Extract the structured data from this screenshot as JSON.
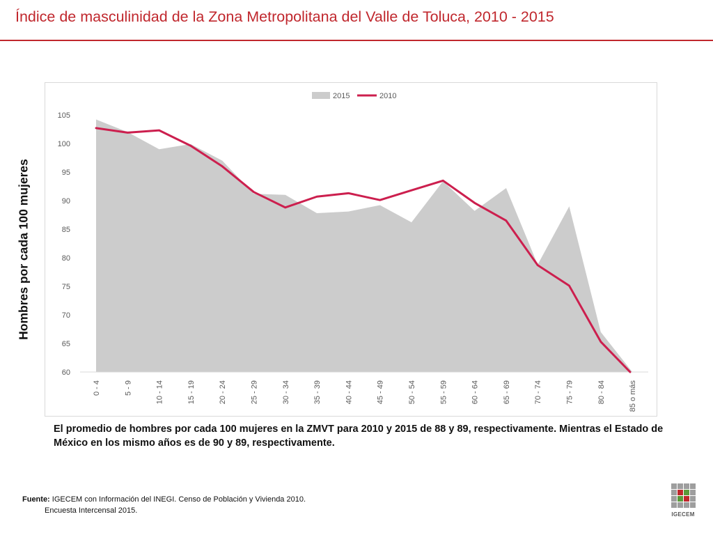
{
  "slide": {
    "title": "Índice de masculinidad de la Zona Metropolitana del Valle de Toluca, 2010 - 2015",
    "accent_color": "#c0272d"
  },
  "note": "El promedio de hombres por cada 100 mujeres en la ZMVT para 2010 y 2015 de 88 y 89, respectivamente. Mientras el Estado de México en los mismo años es de 90 y 89, respectivamente.",
  "source": {
    "label": "Fuente:",
    "line1": "IGECEM con Información del INEGI. Censo de Población y Vivienda 2010.",
    "line2": "Encuesta Intercensal 2015."
  },
  "logo": {
    "text": "IGECEM",
    "colors": [
      "#9e9e9e",
      "#c0272d",
      "#5a9a3a",
      "#9e9e9e"
    ]
  },
  "chart_data": {
    "type": "area",
    "title": "",
    "xlabel": "",
    "ylabel": "Hombres por cada 100 mujeres",
    "ylim": [
      60,
      105
    ],
    "yticks": [
      "60",
      "65",
      "70",
      "75",
      "80",
      "85",
      "90",
      "95",
      "100",
      "105"
    ],
    "grid": false,
    "legend_position": "top",
    "categories": [
      "0 - 4",
      "5 - 9",
      "10 - 14",
      "15 - 19",
      "20 - 24",
      "25 - 29",
      "30 - 34",
      "35 - 39",
      "40 - 44",
      "45 - 49",
      "50 - 54",
      "55 - 59",
      "60 - 64",
      "65 - 69",
      "70 - 74",
      "75 - 79",
      "80 - 84",
      "85 o más"
    ],
    "series": [
      {
        "name": "2015",
        "kind": "area",
        "color": "#cccccc",
        "values": [
          104.2,
          102.0,
          99.0,
          99.9,
          97.0,
          91.2,
          91.0,
          87.8,
          88.1,
          89.2,
          86.2,
          93.4,
          88.2,
          92.2,
          78.8,
          89.0,
          67.0,
          60.0
        ]
      },
      {
        "name": "2010",
        "kind": "line",
        "color": "#cc1f4e",
        "values": [
          102.7,
          101.9,
          102.3,
          99.6,
          96.0,
          91.5,
          88.8,
          90.7,
          91.3,
          90.1,
          91.8,
          93.5,
          89.6,
          86.5,
          78.7,
          75.1,
          65.3,
          59.6
        ]
      }
    ]
  }
}
